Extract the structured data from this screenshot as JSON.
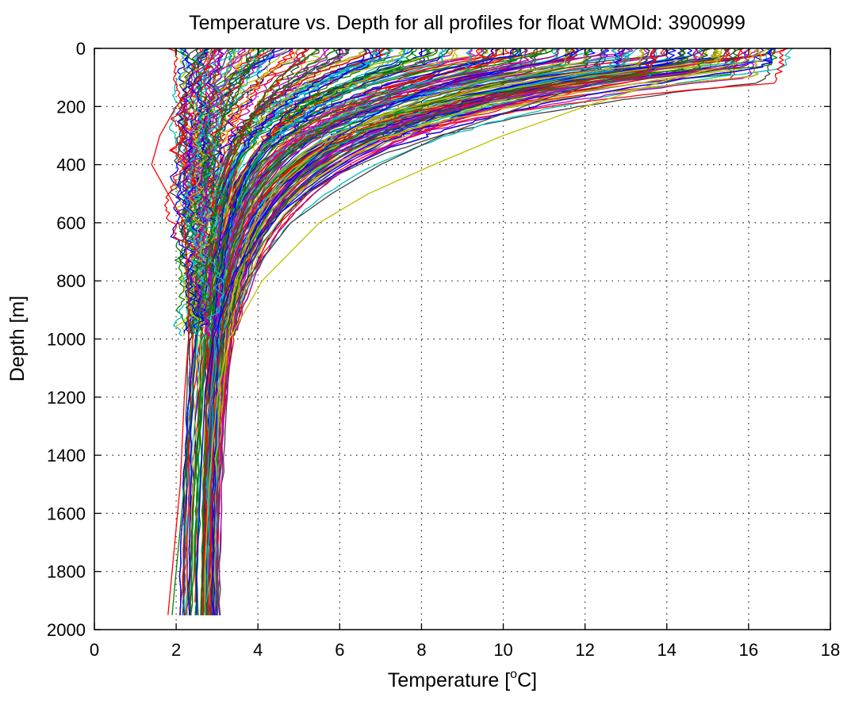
{
  "chart_data": {
    "type": "line",
    "title": "Temperature vs. Depth for all profiles for float WMOId: 3900999",
    "xlabel": "Temperature [°C]",
    "xlabel_parts": {
      "before": "Temperature [",
      "superscript": "o",
      "after": "C]"
    },
    "ylabel": "Depth [m]",
    "xlim": [
      0,
      18
    ],
    "ylim": [
      0,
      2000
    ],
    "y_reversed": true,
    "x_ticks": [
      0,
      2,
      4,
      6,
      8,
      10,
      12,
      14,
      16,
      18
    ],
    "y_ticks": [
      0,
      200,
      400,
      600,
      800,
      1000,
      1200,
      1400,
      1600,
      1800,
      2000
    ],
    "grid": true,
    "legend": "none",
    "color_cycle": [
      "#0000ff",
      "#008000",
      "#ff0000",
      "#00bfbf",
      "#bf00bf",
      "#bfbf00",
      "#404040"
    ],
    "series_style": "about 400 overlapping temperature profiles, each drawn in the next color of the cycle",
    "representative_profiles": {
      "depths": [
        0,
        50,
        100,
        150,
        200,
        300,
        400,
        500,
        600,
        800,
        1000,
        1200,
        1500,
        1800,
        1950
      ],
      "series": [
        {
          "values": [
            16.5,
            15.8,
            14.2,
            13.1,
            12.0,
            10.0,
            8.3,
            6.7,
            5.5,
            4.1,
            3.3,
            3.0,
            2.8,
            2.7,
            2.7
          ]
        },
        {
          "values": [
            15.0,
            14.2,
            12.8,
            11.5,
            10.5,
            8.5,
            7.0,
            5.8,
            4.8,
            3.7,
            3.1,
            2.9,
            2.7,
            2.65,
            2.6
          ]
        },
        {
          "values": [
            12.0,
            11.0,
            9.0,
            8.0,
            7.2,
            6.0,
            5.2,
            4.6,
            4.0,
            3.4,
            2.9,
            2.7,
            2.6,
            2.5,
            2.5
          ]
        },
        {
          "values": [
            5.5,
            5.0,
            4.5,
            4.2,
            4.0,
            3.6,
            3.2,
            3.0,
            2.9,
            2.7,
            2.5,
            2.4,
            2.2,
            2.0,
            1.9
          ]
        },
        {
          "values": [
            3.0,
            2.8,
            2.6,
            2.3,
            2.0,
            1.6,
            1.4,
            1.8,
            2.2,
            2.3,
            2.3,
            2.2,
            2.1,
            1.9,
            1.8
          ]
        }
      ]
    }
  }
}
